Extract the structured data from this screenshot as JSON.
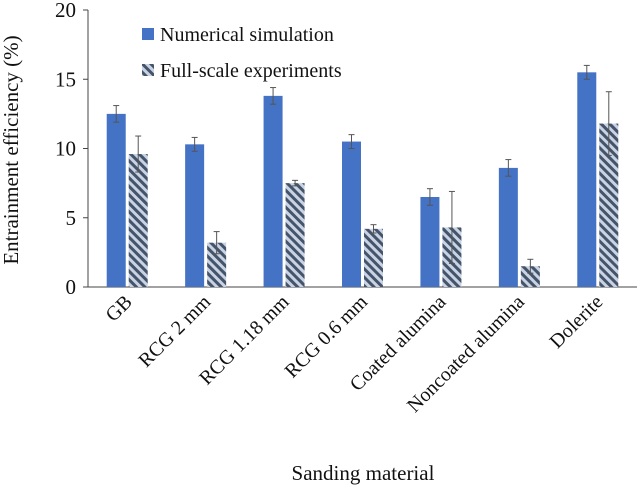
{
  "chart_data": {
    "type": "bar",
    "title": "",
    "xlabel": "Sanding material",
    "ylabel": "Entrainment efficiency (%)",
    "ylim": [
      0,
      20
    ],
    "yticks": [
      0,
      5,
      10,
      15,
      20
    ],
    "grid": false,
    "legend_position": "top-left",
    "categories": [
      "GB",
      "RCG 2 mm",
      "RCG 1.18 mm",
      "RCG 0.6 mm",
      "Coated alumina",
      "Noncoated alumina",
      "Dolerite"
    ],
    "series": [
      {
        "name": "Numerical simulation",
        "style": "solid",
        "color": "#4472C4",
        "values": [
          12.5,
          10.3,
          13.8,
          10.5,
          6.5,
          8.6,
          15.5
        ],
        "errors": [
          0.6,
          0.5,
          0.6,
          0.5,
          0.6,
          0.6,
          0.5
        ]
      },
      {
        "name": "Full-scale experiments",
        "style": "hatched",
        "color": "#44546A",
        "values": [
          9.6,
          3.2,
          7.5,
          4.2,
          4.3,
          1.5,
          11.8
        ],
        "errors": [
          1.3,
          0.8,
          0.2,
          0.3,
          2.6,
          0.5,
          2.3
        ]
      }
    ]
  }
}
